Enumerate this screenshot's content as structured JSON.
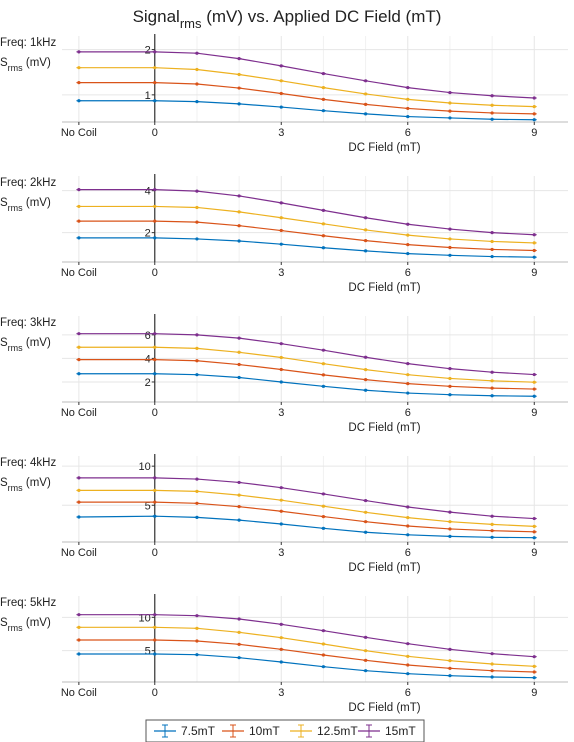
{
  "title": {
    "main": "Signal",
    "sub": "rms",
    "rest": " (mV) vs. Applied DC Field (mT)"
  },
  "legend": {
    "position": "bottom-center",
    "entries": [
      "7.5mT",
      "10mT",
      "12.5mT",
      "15mT"
    ]
  },
  "colors": {
    "series": [
      "#0072BD",
      "#D95319",
      "#EDB120",
      "#7E2F8E"
    ],
    "grid": "#e6e6e6",
    "axis": "#333333"
  },
  "chart_data": [
    {
      "type": "line",
      "panel_label": "Freq: 1kHz",
      "ylabel": {
        "main": "S",
        "sub": "rms",
        "rest": " (mV)"
      },
      "xlabel": "DC Field (mT)",
      "x_ticks": [
        "No Coil",
        "0",
        "3",
        "6",
        "9"
      ],
      "y_ticks": [
        "1",
        "2"
      ],
      "x": [
        -1.8,
        0,
        1,
        2,
        3,
        4,
        5,
        6,
        7,
        8,
        9
      ],
      "xlim": [
        -2.2,
        9.8
      ],
      "ylim": [
        0.4,
        2.3
      ],
      "grid": true,
      "series": [
        {
          "name": "7.5mT",
          "values": [
            0.87,
            0.87,
            0.85,
            0.8,
            0.73,
            0.65,
            0.58,
            0.52,
            0.49,
            0.46,
            0.45
          ]
        },
        {
          "name": "10mT",
          "values": [
            1.27,
            1.27,
            1.24,
            1.15,
            1.03,
            0.9,
            0.79,
            0.7,
            0.64,
            0.6,
            0.58
          ]
        },
        {
          "name": "12.5mT",
          "values": [
            1.6,
            1.6,
            1.56,
            1.45,
            1.31,
            1.16,
            1.02,
            0.9,
            0.82,
            0.77,
            0.74
          ]
        },
        {
          "name": "15mT",
          "values": [
            1.95,
            1.95,
            1.92,
            1.8,
            1.64,
            1.47,
            1.31,
            1.16,
            1.05,
            0.98,
            0.93
          ]
        }
      ]
    },
    {
      "type": "line",
      "panel_label": "Freq: 2kHz",
      "ylabel": {
        "main": "S",
        "sub": "rms",
        "rest": " (mV)"
      },
      "xlabel": "DC Field (mT)",
      "x_ticks": [
        "No Coil",
        "0",
        "3",
        "6",
        "9"
      ],
      "y_ticks": [
        "2",
        "4"
      ],
      "x": [
        -1.8,
        0,
        1,
        2,
        3,
        4,
        5,
        6,
        7,
        8,
        9
      ],
      "xlim": [
        -2.2,
        9.8
      ],
      "ylim": [
        0.6,
        4.7
      ],
      "grid": true,
      "series": [
        {
          "name": "7.5mT",
          "values": [
            1.75,
            1.75,
            1.7,
            1.6,
            1.45,
            1.28,
            1.13,
            1.0,
            0.92,
            0.86,
            0.83
          ]
        },
        {
          "name": "10mT",
          "values": [
            2.55,
            2.55,
            2.5,
            2.33,
            2.1,
            1.85,
            1.62,
            1.43,
            1.29,
            1.2,
            1.15
          ]
        },
        {
          "name": "12.5mT",
          "values": [
            3.25,
            3.25,
            3.2,
            2.99,
            2.71,
            2.42,
            2.13,
            1.88,
            1.7,
            1.58,
            1.51
          ]
        },
        {
          "name": "15mT",
          "values": [
            4.05,
            4.05,
            3.98,
            3.75,
            3.42,
            3.06,
            2.71,
            2.4,
            2.17,
            2.0,
            1.9
          ]
        }
      ]
    },
    {
      "type": "line",
      "panel_label": "Freq: 3kHz",
      "ylabel": {
        "main": "S",
        "sub": "rms",
        "rest": " (mV)"
      },
      "xlabel": "DC Field (mT)",
      "x_ticks": [
        "No Coil",
        "0",
        "3",
        "6",
        "9"
      ],
      "y_ticks": [
        "2",
        "4",
        "6"
      ],
      "x": [
        -1.8,
        0,
        1,
        2,
        3,
        4,
        5,
        6,
        7,
        8,
        9
      ],
      "xlim": [
        -2.2,
        9.8
      ],
      "ylim": [
        0.3,
        7.6
      ],
      "grid": true,
      "series": [
        {
          "name": "7.5mT",
          "values": [
            2.7,
            2.7,
            2.62,
            2.38,
            2.0,
            1.63,
            1.3,
            1.06,
            0.92,
            0.83,
            0.79
          ]
        },
        {
          "name": "10mT",
          "values": [
            3.9,
            3.9,
            3.8,
            3.48,
            3.06,
            2.6,
            2.2,
            1.86,
            1.63,
            1.48,
            1.4
          ]
        },
        {
          "name": "12.5mT",
          "values": [
            4.95,
            4.95,
            4.85,
            4.52,
            4.08,
            3.55,
            3.05,
            2.62,
            2.3,
            2.1,
            1.98
          ]
        },
        {
          "name": "15mT",
          "values": [
            6.1,
            6.1,
            6.0,
            5.72,
            5.25,
            4.7,
            4.1,
            3.56,
            3.13,
            2.83,
            2.63
          ]
        }
      ]
    },
    {
      "type": "line",
      "panel_label": "Freq: 4kHz",
      "ylabel": {
        "main": "S",
        "sub": "rms",
        "rest": " (mV)"
      },
      "xlabel": "DC Field (mT)",
      "x_ticks": [
        "No Coil",
        "0",
        "3",
        "6",
        "9"
      ],
      "y_ticks": [
        "5",
        "10"
      ],
      "x": [
        -1.8,
        0,
        1,
        2,
        3,
        4,
        5,
        6,
        7,
        8,
        9
      ],
      "xlim": [
        -2.2,
        9.8
      ],
      "ylim": [
        0.3,
        11.3
      ],
      "grid": true,
      "series": [
        {
          "name": "7.5mT",
          "values": [
            3.5,
            3.6,
            3.45,
            3.1,
            2.6,
            2.05,
            1.55,
            1.22,
            1.02,
            0.9,
            0.85
          ]
        },
        {
          "name": "10mT",
          "values": [
            5.4,
            5.4,
            5.25,
            4.82,
            4.23,
            3.55,
            2.9,
            2.35,
            1.97,
            1.75,
            1.6
          ]
        },
        {
          "name": "12.5mT",
          "values": [
            6.9,
            6.9,
            6.78,
            6.3,
            5.65,
            4.88,
            4.1,
            3.42,
            2.9,
            2.55,
            2.3
          ]
        },
        {
          "name": "15mT",
          "values": [
            8.5,
            8.5,
            8.35,
            7.92,
            7.25,
            6.45,
            5.6,
            4.78,
            4.12,
            3.6,
            3.3
          ]
        }
      ]
    },
    {
      "type": "line",
      "panel_label": "Freq: 5kHz",
      "ylabel": {
        "main": "S",
        "sub": "rms",
        "rest": " (mV)"
      },
      "xlabel": "DC Field (mT)",
      "x_ticks": [
        "No Coil",
        "0",
        "3",
        "6",
        "9"
      ],
      "y_ticks": [
        "5",
        "10"
      ],
      "x": [
        -1.8,
        0,
        1,
        2,
        3,
        4,
        5,
        6,
        7,
        8,
        9
      ],
      "xlim": [
        -2.2,
        9.8
      ],
      "ylim": [
        0.3,
        13.2
      ],
      "grid": true,
      "series": [
        {
          "name": "7.5mT",
          "values": [
            4.5,
            4.5,
            4.4,
            3.95,
            3.3,
            2.6,
            2.0,
            1.55,
            1.25,
            1.05,
            0.95
          ]
        },
        {
          "name": "10mT",
          "values": [
            6.6,
            6.6,
            6.45,
            5.95,
            5.2,
            4.35,
            3.55,
            2.85,
            2.35,
            2.0,
            1.8
          ]
        },
        {
          "name": "12.5mT",
          "values": [
            8.5,
            8.5,
            8.35,
            7.75,
            6.95,
            6.0,
            5.0,
            4.15,
            3.5,
            3.0,
            2.65
          ]
        },
        {
          "name": "15mT",
          "values": [
            10.4,
            10.4,
            10.25,
            9.75,
            8.95,
            8.0,
            7.0,
            6.05,
            5.2,
            4.55,
            4.1
          ]
        }
      ]
    }
  ]
}
